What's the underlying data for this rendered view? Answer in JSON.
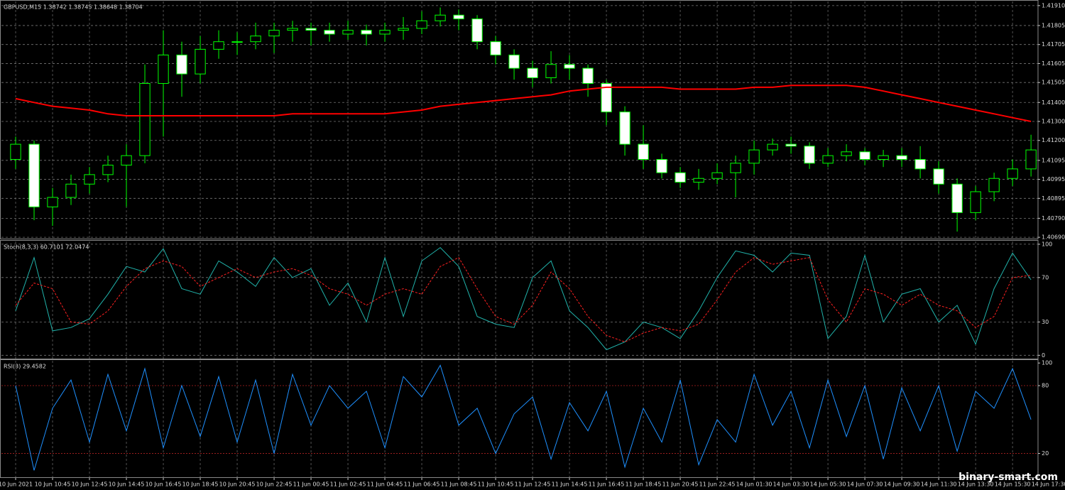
{
  "chart_data": [
    {
      "type": "candlestick",
      "title": "GBPUSD,M15  1.38742 1.38745 1.38648 1.38704",
      "xlim": [
        -0.77,
        55.38
      ],
      "ylim": [
        1.40683,
        1.41932
      ],
      "yticks": [
        {
          "value": 1.4191,
          "label": "1.41910"
        },
        1.41805,
        1.41705,
        1.41605,
        1.41505,
        {
          "value": 1.414,
          "label": "1.41400"
        },
        {
          "value": 1.413,
          "label": "1.41300"
        },
        {
          "value": 1.412,
          "label": "1.41200"
        },
        1.41095,
        1.40995,
        1.40895,
        {
          "value": 1.4079,
          "label": "1.40790"
        },
        {
          "value": 1.4069,
          "label": "1.40690"
        }
      ],
      "grid": true,
      "up_color": "#00ff00",
      "down_fill": "#ffffff",
      "open": [
        1.411,
        1.4118,
        1.4085,
        1.409,
        1.4097,
        1.4102,
        1.4107,
        1.4112,
        1.415,
        1.4165,
        1.4155,
        1.4168,
        1.4172,
        1.4172,
        1.4175,
        1.4178,
        1.4179,
        1.4178,
        1.4176,
        1.4178,
        1.4176,
        1.4178,
        1.4179,
        1.4183,
        1.4186,
        1.4184,
        1.4172,
        1.4165,
        1.4158,
        1.4153,
        1.416,
        1.4158,
        1.415,
        1.4135,
        1.4118,
        1.411,
        1.4103,
        1.4098,
        1.41,
        1.4103,
        1.4108,
        1.4115,
        1.4118,
        1.4117,
        1.4108,
        1.4112,
        1.4114,
        1.411,
        1.4112,
        1.411,
        1.4105,
        1.4097,
        1.4082,
        1.4093,
        1.41,
        1.4105
      ],
      "high": [
        1.4122,
        1.412,
        1.4095,
        1.4102,
        1.4106,
        1.4112,
        1.4118,
        1.416,
        1.4178,
        1.4172,
        1.4175,
        1.4178,
        1.4177,
        1.4182,
        1.4182,
        1.4183,
        1.4182,
        1.4182,
        1.4183,
        1.4181,
        1.4182,
        1.4185,
        1.4188,
        1.419,
        1.4189,
        1.4186,
        1.4175,
        1.4168,
        1.4162,
        1.4167,
        1.4165,
        1.416,
        1.4152,
        1.4138,
        1.4128,
        1.4113,
        1.4106,
        1.4105,
        1.4108,
        1.4112,
        1.412,
        1.4121,
        1.4122,
        1.4119,
        1.4116,
        1.4118,
        1.4116,
        1.4115,
        1.4116,
        1.4117,
        1.4109,
        1.41,
        1.4096,
        1.4103,
        1.411,
        1.4123
      ],
      "low": [
        1.4105,
        1.4078,
        1.4075,
        1.4086,
        1.4092,
        1.4098,
        1.4085,
        1.4108,
        1.4122,
        1.4143,
        1.415,
        1.4163,
        1.4165,
        1.4168,
        1.4166,
        1.4172,
        1.417,
        1.4172,
        1.4173,
        1.417,
        1.4172,
        1.4173,
        1.4176,
        1.418,
        1.4178,
        1.4168,
        1.416,
        1.4152,
        1.4148,
        1.415,
        1.4152,
        1.4143,
        1.4128,
        1.4112,
        1.4105,
        1.41,
        1.4095,
        1.4094,
        1.4097,
        1.409,
        1.4102,
        1.4112,
        1.4113,
        1.4105,
        1.4106,
        1.4109,
        1.4107,
        1.4106,
        1.4106,
        1.41,
        1.4092,
        1.4072,
        1.4078,
        1.4088,
        1.4096,
        1.4101
      ],
      "close": [
        1.4118,
        1.4085,
        1.409,
        1.4097,
        1.4102,
        1.4107,
        1.4112,
        1.415,
        1.4165,
        1.4155,
        1.4168,
        1.4172,
        1.4172,
        1.4175,
        1.4178,
        1.4179,
        1.4178,
        1.4176,
        1.4178,
        1.4176,
        1.4178,
        1.4179,
        1.4183,
        1.4186,
        1.4184,
        1.4172,
        1.4165,
        1.4158,
        1.4153,
        1.416,
        1.4158,
        1.415,
        1.4135,
        1.4118,
        1.411,
        1.4103,
        1.4098,
        1.41,
        1.4103,
        1.4108,
        1.4115,
        1.4118,
        1.4117,
        1.4108,
        1.4112,
        1.4114,
        1.411,
        1.4112,
        1.411,
        1.4105,
        1.4097,
        1.4082,
        1.4093,
        1.41,
        1.4105,
        1.4115
      ],
      "series": [
        {
          "color": "#ff0000",
          "values": [
            1.4142,
            1.414,
            1.4138,
            1.4137,
            1.4136,
            1.4134,
            1.4133,
            1.4133,
            1.4133,
            1.4133,
            1.4133,
            1.4133,
            1.4133,
            1.4133,
            1.4133,
            1.4134,
            1.4134,
            1.4134,
            1.4134,
            1.4134,
            1.4134,
            1.4135,
            1.4136,
            1.4138,
            1.4139,
            1.414,
            1.4141,
            1.4142,
            1.4143,
            1.4144,
            1.4146,
            1.4147,
            1.4148,
            1.4148,
            1.4148,
            1.4148,
            1.4147,
            1.4147,
            1.4147,
            1.4147,
            1.4148,
            1.4148,
            1.4149,
            1.4149,
            1.4149,
            1.4149,
            1.4148,
            1.4146,
            1.4144,
            1.4142,
            1.414,
            1.4138,
            1.4136,
            1.4134,
            1.4132,
            1.413
          ]
        }
      ]
    },
    {
      "type": "line",
      "title": "Stoch(8,3,3) 60.7101 72.0474",
      "xlim": [
        -0.77,
        55.38
      ],
      "ylim": [
        -3,
        102.5
      ],
      "yticks": [
        100,
        70,
        30,
        0
      ],
      "grid": true,
      "series": [
        {
          "color": "#20b2aa",
          "style": "solid",
          "values": [
            40,
            88,
            22,
            25,
            33,
            55,
            80,
            75,
            96,
            60,
            55,
            85,
            75,
            62,
            88,
            70,
            78,
            45,
            65,
            30,
            88,
            35,
            85,
            97,
            80,
            35,
            28,
            25,
            70,
            85,
            40,
            25,
            5,
            12,
            30,
            25,
            15,
            40,
            70,
            94,
            90,
            75,
            92,
            90,
            15,
            35,
            90,
            30,
            55,
            60,
            30,
            45,
            10,
            60,
            92,
            68
          ]
        },
        {
          "color": "#ff2020",
          "style": "dashed",
          "values": [
            45,
            65,
            60,
            30,
            28,
            40,
            62,
            78,
            85,
            80,
            62,
            70,
            78,
            70,
            75,
            78,
            72,
            60,
            55,
            45,
            55,
            60,
            55,
            80,
            88,
            60,
            35,
            28,
            45,
            75,
            60,
            35,
            18,
            12,
            20,
            25,
            22,
            28,
            50,
            75,
            88,
            82,
            85,
            88,
            50,
            30,
            60,
            55,
            45,
            55,
            45,
            40,
            25,
            35,
            70,
            72
          ]
        }
      ]
    },
    {
      "type": "line",
      "title": "RSI(3) 29.4582",
      "xlim": [
        -0.77,
        55.38
      ],
      "ylim": [
        -1,
        102
      ],
      "yticks": [
        100,
        80,
        20
      ],
      "levels": [
        80,
        20
      ],
      "level_color": "#b22222",
      "grid": false,
      "xticks": [
        {
          "value": 0,
          "label": "10 Jun 2021"
        },
        {
          "value": 2,
          "label": "10 Jun 10:45"
        },
        {
          "value": 4,
          "label": "10 Jun 12:45"
        },
        {
          "value": 6,
          "label": "10 Jun 14:45"
        },
        {
          "value": 8,
          "label": "10 Jun 16:45"
        },
        {
          "value": 10,
          "label": "10 Jun 18:45"
        },
        {
          "value": 12,
          "label": "10 Jun 20:45"
        },
        {
          "value": 14,
          "label": "10 Jun 22:45"
        },
        {
          "value": 16,
          "label": "11 Jun 00:45"
        },
        {
          "value": 18,
          "label": "11 Jun 02:45"
        },
        {
          "value": 20,
          "label": "11 Jun 04:45"
        },
        {
          "value": 22,
          "label": "11 Jun 06:45"
        },
        {
          "value": 24,
          "label": "11 Jun 08:45"
        },
        {
          "value": 26,
          "label": "11 Jun 10:45"
        },
        {
          "value": 28,
          "label": "11 Jun 12:45"
        },
        {
          "value": 30,
          "label": "11 Jun 14:45"
        },
        {
          "value": 32,
          "label": "11 Jun 16:45"
        },
        {
          "value": 34,
          "label": "11 Jun 18:45"
        },
        {
          "value": 36,
          "label": "11 Jun 20:45"
        },
        {
          "value": 38,
          "label": "11 Jun 22:45"
        },
        {
          "value": 40,
          "label": "14 Jun 01:30"
        },
        {
          "value": 42,
          "label": "14 Jun 03:30"
        },
        {
          "value": 44,
          "label": "14 Jun 05:30"
        },
        {
          "value": 46,
          "label": "14 Jun 07:30"
        },
        {
          "value": 48,
          "label": "14 Jun 09:30"
        },
        {
          "value": 50,
          "label": "14 Jun 11:30"
        },
        {
          "value": 52,
          "label": "14 Jun 13:30"
        },
        {
          "value": 54,
          "label": "14 Jun 15:30"
        },
        {
          "value": 56,
          "label": "14 Jun 17:30"
        }
      ],
      "series": [
        {
          "color": "#1e90ff",
          "style": "solid",
          "values": [
            80,
            5,
            60,
            85,
            30,
            90,
            40,
            95,
            25,
            80,
            35,
            88,
            30,
            85,
            20,
            90,
            45,
            80,
            60,
            75,
            25,
            88,
            70,
            98,
            45,
            60,
            20,
            55,
            70,
            15,
            65,
            40,
            75,
            8,
            60,
            30,
            85,
            10,
            50,
            30,
            90,
            45,
            75,
            25,
            85,
            35,
            80,
            15,
            78,
            40,
            80,
            22,
            75,
            60,
            95,
            50
          ]
        }
      ]
    }
  ],
  "watermark": "binary-smart.com"
}
